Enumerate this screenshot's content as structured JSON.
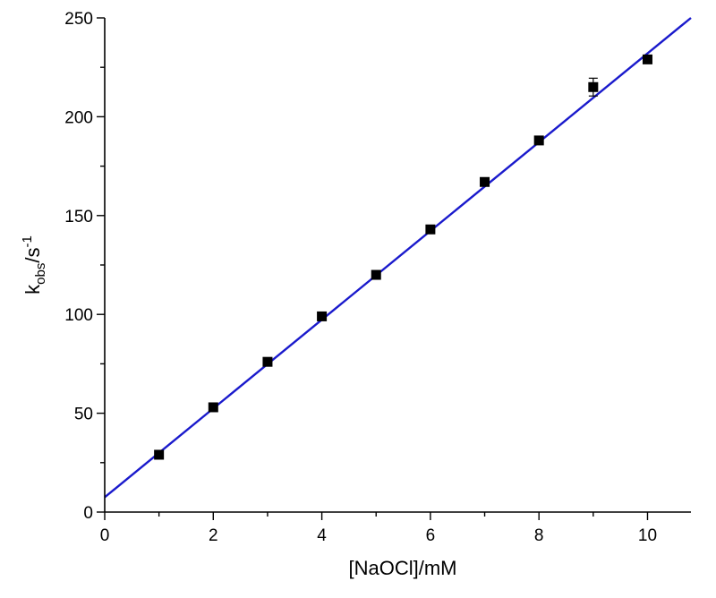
{
  "chart_data": {
    "type": "scatter",
    "title": "",
    "xlabel": "[NaOCl]/mM",
    "ylabel": {
      "base": "k",
      "sub": "obs",
      "unit": "/s",
      "sup": "-1"
    },
    "xlim": [
      0,
      10.8
    ],
    "ylim": [
      0,
      250
    ],
    "x_ticks": [
      0,
      2,
      4,
      6,
      8,
      10
    ],
    "x_minor_ticks": [
      1,
      3,
      5,
      7,
      9
    ],
    "y_ticks": [
      0,
      50,
      100,
      150,
      200,
      250
    ],
    "y_minor_ticks": [
      25,
      75,
      125,
      175,
      225
    ],
    "grid": false,
    "series": [
      {
        "type": "scatter",
        "marker": "square",
        "color": "#000000",
        "x": [
          1,
          2,
          3,
          4,
          5,
          6,
          7,
          8,
          9,
          10
        ],
        "y": [
          29,
          53,
          76,
          99,
          120,
          143,
          167,
          188,
          215,
          229
        ],
        "yerr": [
          1.2,
          1.2,
          1.2,
          1.2,
          1.2,
          1.2,
          1.2,
          1.5,
          4.5,
          1.5
        ]
      },
      {
        "type": "line",
        "color": "#1a1acc",
        "x": [
          0,
          10.8
        ],
        "y": [
          7.5,
          250
        ]
      }
    ]
  }
}
